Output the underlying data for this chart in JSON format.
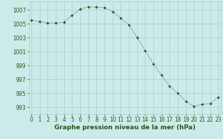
{
  "x": [
    0,
    1,
    2,
    3,
    4,
    5,
    6,
    7,
    8,
    9,
    10,
    11,
    12,
    13,
    14,
    15,
    16,
    17,
    18,
    19,
    20,
    21,
    22,
    23
  ],
  "y": [
    1005.5,
    1005.3,
    1005.1,
    1005.1,
    1005.2,
    1006.2,
    1007.1,
    1007.4,
    1007.4,
    1007.3,
    1006.7,
    1005.8,
    1004.8,
    1003.0,
    1001.1,
    999.2,
    997.6,
    996.0,
    995.0,
    993.8,
    993.1,
    993.4,
    993.5,
    994.4
  ],
  "line_color": "#1a5c1a",
  "marker": "D",
  "marker_size": 1.8,
  "bg_color": "#cdeaea",
  "grid_color": "#aacaca",
  "xlabel": "Graphe pression niveau de la mer (hPa)",
  "xlabel_fontsize": 6.5,
  "xlabel_color": "#1a5c1a",
  "xlabel_bold": true,
  "yticks": [
    993,
    995,
    997,
    999,
    1001,
    1003,
    1005,
    1007
  ],
  "xticks": [
    0,
    1,
    2,
    3,
    4,
    5,
    6,
    7,
    8,
    9,
    10,
    11,
    12,
    13,
    14,
    15,
    16,
    17,
    18,
    19,
    20,
    21,
    22,
    23
  ],
  "xlim": [
    -0.3,
    23.3
  ],
  "ylim": [
    992.0,
    1008.2
  ],
  "tick_color": "#1a5c1a",
  "tick_fontsize": 5.5
}
